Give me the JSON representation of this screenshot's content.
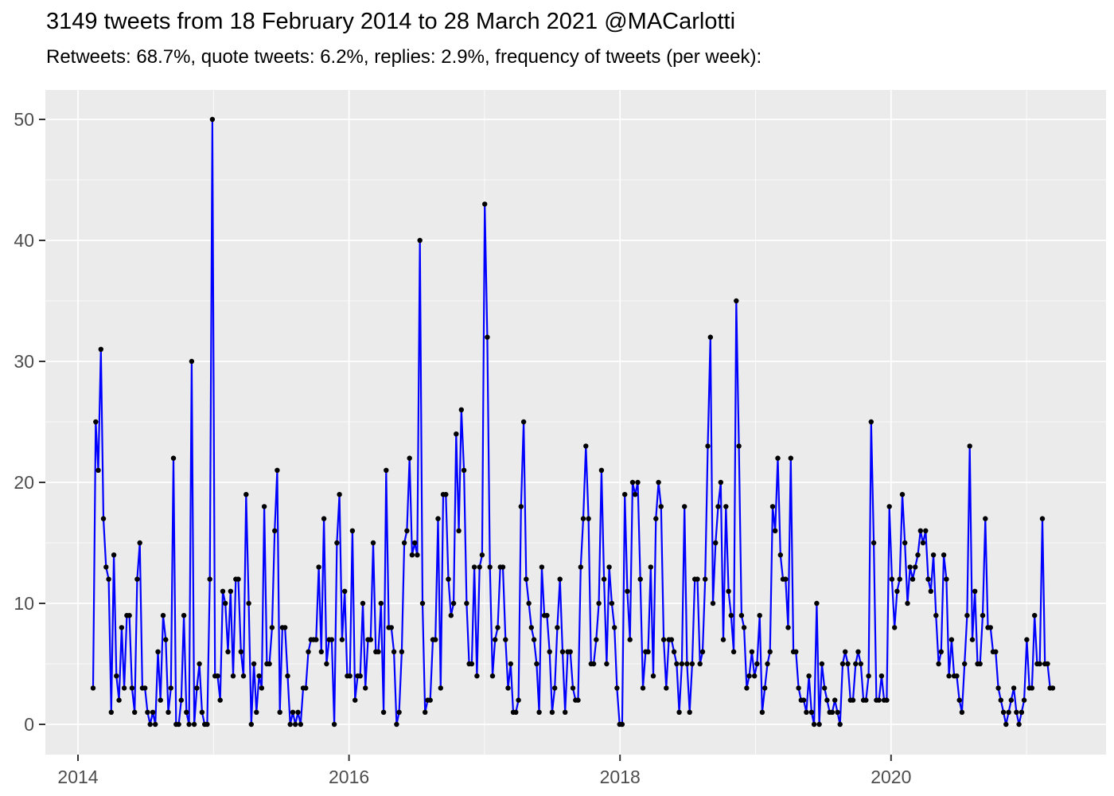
{
  "header": {
    "title": "3149 tweets from 18 February 2014 to 28 March 2021 @MACarlotti",
    "subtitle": "Retweets: 68.7%, quote tweets: 6.2%, replies: 2.9%, frequency of tweets (per week):"
  },
  "chart_data": {
    "type": "line",
    "title": "3149 tweets from 18 February 2014 to 28 March 2021 @MACarlotti",
    "subtitle": "Retweets: 68.7%, quote tweets: 6.2%, replies: 2.9%, frequency of tweets (per week):",
    "xlabel": "",
    "ylabel": "",
    "x_axis": {
      "unit": "week",
      "start": "2014-02-18",
      "end": "2021-03-28",
      "tick_labels": [
        "2014",
        "2016",
        "2018",
        "2020"
      ],
      "tick_years": [
        2014,
        2016,
        2018,
        2020
      ],
      "minor_tick_years": [
        2015,
        2017,
        2019,
        2021
      ]
    },
    "y_axis": {
      "tick_labels": [
        "0",
        "10",
        "20",
        "30",
        "40",
        "50"
      ],
      "ticks": [
        0,
        10,
        20,
        30,
        40,
        50
      ],
      "minor_ticks": [
        5,
        15,
        25,
        35,
        45
      ],
      "range": [
        0,
        50
      ]
    },
    "grid": true,
    "legend": false,
    "style": {
      "panel_background": "#EBEBEB",
      "gridline_color": "#FFFFFF",
      "line_color": "#0000FF",
      "point_color": "#000000",
      "tick_label_color": "#4D4D4D",
      "tick_mark_color": "#333333"
    },
    "series": [
      {
        "name": "tweets per week",
        "values": [
          3,
          25,
          21,
          31,
          17,
          13,
          12,
          1,
          14,
          4,
          2,
          8,
          3,
          9,
          9,
          3,
          1,
          12,
          15,
          3,
          3,
          1,
          0,
          1,
          0,
          6,
          2,
          9,
          7,
          1,
          3,
          22,
          0,
          0,
          2,
          9,
          1,
          0,
          30,
          0,
          3,
          5,
          1,
          0,
          0,
          12,
          50,
          4,
          4,
          2,
          11,
          10,
          6,
          11,
          4,
          12,
          12,
          6,
          4,
          19,
          10,
          0,
          5,
          1,
          4,
          3,
          18,
          5,
          5,
          8,
          16,
          21,
          1,
          8,
          8,
          4,
          0,
          1,
          0,
          1,
          0,
          3,
          3,
          6,
          7,
          7,
          7,
          13,
          6,
          17,
          5,
          7,
          7,
          0,
          15,
          19,
          7,
          11,
          4,
          4,
          16,
          2,
          4,
          4,
          10,
          3,
          7,
          7,
          15,
          6,
          6,
          10,
          1,
          21,
          8,
          8,
          6,
          0,
          1,
          6,
          15,
          16,
          22,
          14,
          15,
          14,
          40,
          10,
          1,
          2,
          2,
          7,
          7,
          17,
          3,
          19,
          19,
          12,
          9,
          10,
          24,
          16,
          26,
          21,
          10,
          5,
          5,
          13,
          4,
          13,
          14,
          43,
          32,
          13,
          4,
          7,
          8,
          13,
          13,
          7,
          3,
          5,
          1,
          1,
          2,
          18,
          25,
          12,
          10,
          8,
          7,
          5,
          1,
          13,
          9,
          9,
          6,
          1,
          3,
          8,
          12,
          6,
          1,
          6,
          6,
          3,
          2,
          2,
          13,
          17,
          23,
          17,
          5,
          5,
          7,
          10,
          21,
          12,
          5,
          13,
          10,
          8,
          3,
          0,
          0,
          19,
          11,
          7,
          20,
          19,
          20,
          12,
          3,
          6,
          6,
          13,
          4,
          17,
          20,
          18,
          7,
          3,
          7,
          7,
          6,
          5,
          1,
          5,
          18,
          5,
          1,
          5,
          12,
          12,
          5,
          6,
          12,
          23,
          32,
          10,
          15,
          18,
          20,
          7,
          18,
          11,
          9,
          6,
          35,
          23,
          9,
          8,
          3,
          4,
          6,
          4,
          5,
          9,
          1,
          3,
          5,
          6,
          18,
          16,
          22,
          14,
          12,
          12,
          8,
          22,
          6,
          6,
          3,
          2,
          2,
          1,
          4,
          1,
          0,
          10,
          0,
          5,
          3,
          2,
          1,
          1,
          2,
          1,
          0,
          5,
          6,
          5,
          2,
          2,
          5,
          6,
          5,
          2,
          2,
          4,
          25,
          15,
          2,
          2,
          4,
          2,
          2,
          18,
          12,
          8,
          11,
          12,
          19,
          15,
          10,
          13,
          12,
          13,
          14,
          16,
          15,
          16,
          12,
          11,
          14,
          9,
          5,
          6,
          14,
          12,
          4,
          7,
          4,
          4,
          2,
          1,
          5,
          9,
          23,
          7,
          11,
          5,
          5,
          9,
          17,
          8,
          8,
          6,
          6,
          3,
          2,
          1,
          0,
          1,
          2,
          3,
          1,
          0,
          1,
          2,
          7,
          3,
          3,
          9,
          5,
          5,
          17,
          5,
          5,
          3,
          3
        ]
      }
    ]
  }
}
